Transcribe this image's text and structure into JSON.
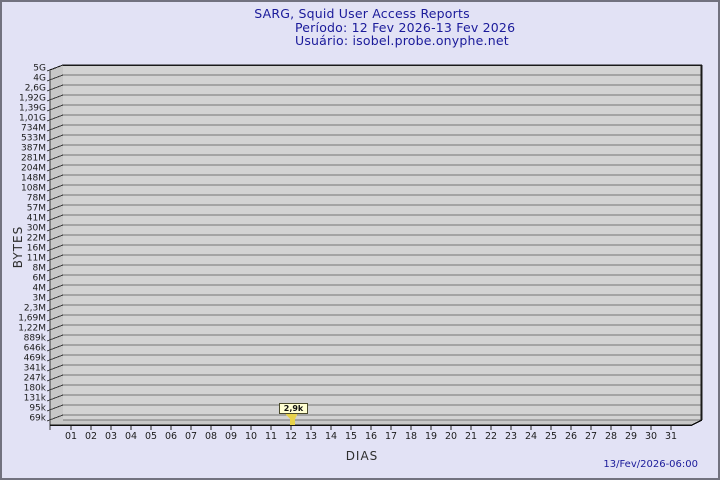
{
  "page": {
    "bg_color": "#e2e2f5",
    "border_color": "#72727f"
  },
  "header": {
    "title": "SARG, Squid User Access Reports",
    "period": "Período: 12 Fev 2026-13 Fev 2026",
    "user": "Usuário: isobel.probe.onyphe.net",
    "text_color": "#1a1a9a"
  },
  "footer": {
    "timestamp": "13/Fev/2026-06:00"
  },
  "chart_data": {
    "type": "line",
    "title": "SARG, Squid User Access Reports",
    "subtitle_period": "Período: 12 Fev 2026-13 Fev 2026",
    "subtitle_user": "Usuário: isobel.probe.onyphe.net",
    "xlabel": "DIAS",
    "ylabel": "BYTES",
    "y_scale": "logarithmic",
    "grid": true,
    "y_tick_labels": [
      "5G",
      "4G",
      "2,6G",
      "1,92G",
      "1,39G",
      "1,01G",
      "734M",
      "533M",
      "387M",
      "281M",
      "204M",
      "148M",
      "108M",
      "78M",
      "57M",
      "41M",
      "30M",
      "22M",
      "16M",
      "11M",
      "8M",
      "6M",
      "4M",
      "3M",
      "2,3M",
      "1,69M",
      "1,22M",
      "889k",
      "646k",
      "469k",
      "341k",
      "247k",
      "180k",
      "131k",
      "95k",
      "69k"
    ],
    "x_tick_labels": [
      "01",
      "02",
      "03",
      "04",
      "05",
      "06",
      "07",
      "08",
      "09",
      "10",
      "11",
      "12",
      "13",
      "14",
      "15",
      "16",
      "17",
      "18",
      "19",
      "20",
      "21",
      "22",
      "23",
      "24",
      "25",
      "26",
      "27",
      "28",
      "29",
      "30",
      "31"
    ],
    "points": [
      {
        "day": "12",
        "value_label": "2,9k",
        "approx_bytes": 2900
      }
    ],
    "colors": {
      "plot_bg": "#d3d3d3",
      "wall": "#c7c7c7",
      "grid": "#757575",
      "frame": "#1a1a1a",
      "tick_line": "#3a3a3a",
      "tick_text": "#1c1c1c",
      "marker": "#e7d24b",
      "annotation_bg": "#ffffd2",
      "annotation_border": "#4a4a2a"
    }
  }
}
